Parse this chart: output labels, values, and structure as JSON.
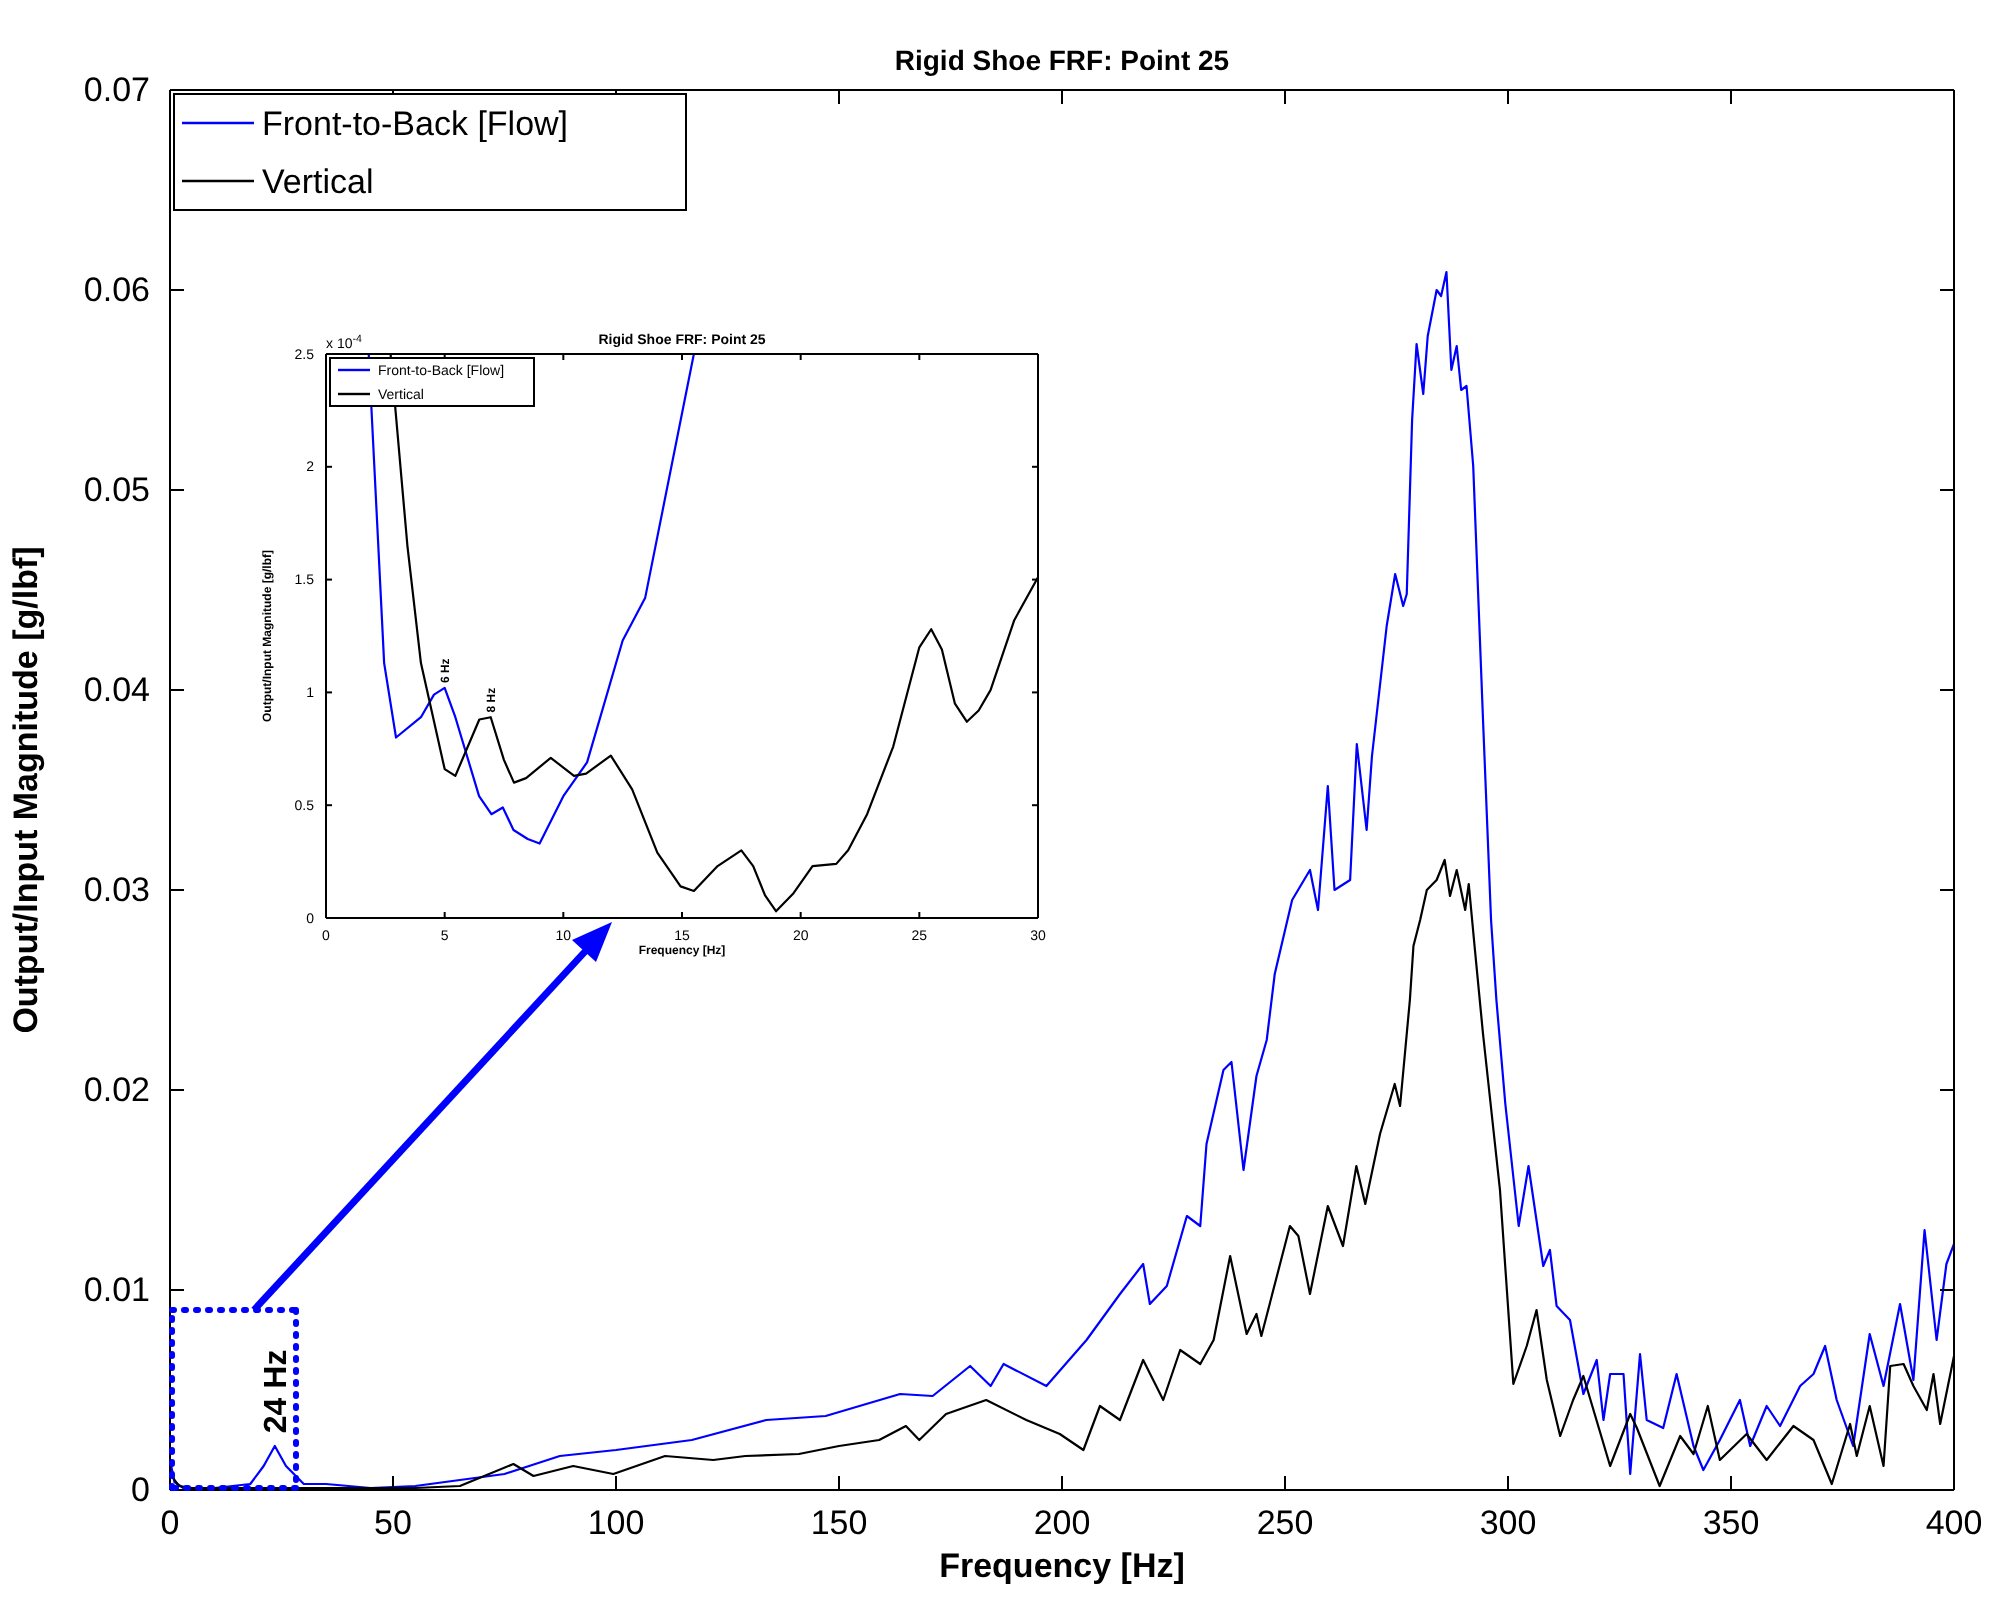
{
  "chart_data": [
    {
      "type": "line",
      "title": "Rigid Shoe FRF:  Point 25",
      "xlabel": "Frequency [Hz]",
      "ylabel": "Output/Input Magnitude [g/lbf]",
      "xlim": [
        0,
        400
      ],
      "ylim": [
        0,
        0.07
      ],
      "xticks": [
        0,
        50,
        100,
        150,
        200,
        250,
        300,
        350,
        400
      ],
      "yticks": [
        0,
        0.01,
        0.02,
        0.03,
        0.04,
        0.05,
        0.06,
        0.07
      ],
      "legend": "top left",
      "annotations": [
        {
          "text": "24 Hz",
          "x": 23.5,
          "y": 0.0022
        }
      ],
      "series": [
        {
          "name": "Front-to-Back [Flow]",
          "color": "#0000ff",
          "x": [
            0,
            1,
            3,
            10,
            18,
            21,
            23.5,
            26,
            30,
            35,
            45,
            55,
            65,
            75,
            87.4,
            100,
            117,
            133.7,
            147,
            163.7,
            171,
            179.4,
            184,
            186.9,
            196.5,
            205.5,
            213,
            218.2,
            219.7,
            223.5,
            228,
            231,
            232.4,
            236.2,
            238,
            240.7,
            243.6,
            245.9,
            247.7,
            251.6,
            255.6,
            257.4,
            259.6,
            261.1,
            264.6,
            266.1,
            268.3,
            269.5,
            272.8,
            274.7,
            276.5,
            277.3,
            278.5,
            279.5,
            281,
            282,
            284,
            285,
            286.2,
            287.3,
            288.5,
            289.5,
            290.7,
            292.2,
            294.4,
            296.2,
            297.4,
            299.4,
            302.4,
            304.6,
            307.9,
            309.4,
            310.9,
            313.9,
            316.9,
            319.9,
            321.4,
            322.9,
            325.9,
            327.4,
            329.6,
            331.1,
            334.8,
            337.8,
            341.6,
            343.8,
            347.5,
            352,
            354.3,
            358,
            361,
            365.5,
            368.5,
            371.1,
            373.7,
            377.4,
            381.1,
            384.2,
            387.9,
            390.9,
            393.4,
            396.1,
            398.3,
            400
          ],
          "values": [
            0.0015,
            0.0004,
            0.0001,
            0.0001,
            0.0003,
            0.0012,
            0.0022,
            0.0012,
            0.0003,
            0.0003,
            0.0001,
            0.0002,
            0.0005,
            0.0008,
            0.0017,
            0.002,
            0.0025,
            0.0035,
            0.0037,
            0.0048,
            0.0047,
            0.0062,
            0.0052,
            0.0063,
            0.0052,
            0.0075,
            0.0098,
            0.0113,
            0.0093,
            0.0102,
            0.0137,
            0.0132,
            0.0173,
            0.021,
            0.0214,
            0.016,
            0.0207,
            0.0225,
            0.0258,
            0.0295,
            0.031,
            0.029,
            0.0352,
            0.03,
            0.0305,
            0.0373,
            0.033,
            0.0367,
            0.0432,
            0.0458,
            0.0442,
            0.0448,
            0.0535,
            0.0573,
            0.0548,
            0.0577,
            0.06,
            0.0597,
            0.0609,
            0.056,
            0.0572,
            0.055,
            0.0552,
            0.0512,
            0.0385,
            0.0285,
            0.0245,
            0.0193,
            0.0132,
            0.0162,
            0.0112,
            0.012,
            0.0092,
            0.0085,
            0.0048,
            0.0065,
            0.0035,
            0.0058,
            0.0058,
            0.0008,
            0.0068,
            0.0035,
            0.0031,
            0.0058,
            0.0022,
            0.001,
            0.0025,
            0.0045,
            0.0022,
            0.0042,
            0.0032,
            0.0052,
            0.0058,
            0.0072,
            0.0045,
            0.0022,
            0.0078,
            0.0052,
            0.0093,
            0.0055,
            0.013,
            0.0075,
            0.0113,
            0.0123
          ]
        },
        {
          "name": "Vertical",
          "color": "#000000",
          "x": [
            0,
            2,
            5,
            20,
            40,
            55,
            65,
            77,
            81.5,
            90.4,
            99.4,
            111,
            121.8,
            129,
            141,
            150,
            159,
            165,
            168,
            174,
            183,
            192,
            199.5,
            204.8,
            208.5,
            213,
            218.2,
            222.7,
            226.5,
            231,
            234,
            237.7,
            241.4,
            243.6,
            244.7,
            251.1,
            253,
            255.6,
            259.6,
            263,
            266,
            268,
            271.3,
            274.6,
            275.8,
            278,
            278.8,
            280.3,
            281.8,
            284,
            285.8,
            287,
            288.5,
            290.4,
            291.2,
            292.5,
            294.4,
            298.2,
            301.2,
            304.2,
            306.4,
            308.7,
            311.7,
            314.6,
            316.9,
            322.9,
            327.4,
            328.9,
            334,
            338.6,
            341.6,
            344.8,
            347.5,
            353.5,
            358,
            364,
            368.5,
            372.6,
            376.7,
            378.2,
            381.1,
            384.2,
            385.7,
            388.7,
            390.9,
            393.9,
            395.4,
            396.9,
            400
          ],
          "values": [
            0.0008,
            0.0002,
            0.0001,
            0.0001,
            0.0001,
            0.0001,
            0.0002,
            0.0013,
            0.0007,
            0.0012,
            0.0008,
            0.0017,
            0.0015,
            0.0017,
            0.0018,
            0.0022,
            0.0025,
            0.0032,
            0.0025,
            0.0038,
            0.0045,
            0.0035,
            0.0028,
            0.002,
            0.0042,
            0.0035,
            0.0065,
            0.0045,
            0.007,
            0.0063,
            0.0075,
            0.0117,
            0.0078,
            0.0088,
            0.0077,
            0.0132,
            0.0127,
            0.0098,
            0.0142,
            0.0122,
            0.0162,
            0.0143,
            0.0178,
            0.0203,
            0.0192,
            0.0245,
            0.0272,
            0.0285,
            0.03,
            0.0305,
            0.0315,
            0.0297,
            0.031,
            0.029,
            0.0303,
            0.0272,
            0.0228,
            0.015,
            0.0053,
            0.0072,
            0.009,
            0.0055,
            0.0027,
            0.0045,
            0.0057,
            0.0012,
            0.0038,
            0.0031,
            0.0002,
            0.0027,
            0.0018,
            0.0042,
            0.0015,
            0.0028,
            0.0015,
            0.0032,
            0.0025,
            0.0003,
            0.0033,
            0.0017,
            0.0042,
            0.0012,
            0.0062,
            0.0063,
            0.0052,
            0.004,
            0.0058,
            0.0033,
            0.0067
          ]
        }
      ]
    },
    {
      "type": "line",
      "title": "Rigid Shoe FRF:  Point 25",
      "xlabel": "Frequency [Hz]",
      "ylabel": "Output/Input Magnitude [g/lbf]",
      "xlim": [
        0,
        30
      ],
      "ylim": [
        0,
        2.5
      ],
      "xticks": [
        0,
        5,
        10,
        15,
        20,
        25,
        30
      ],
      "yticks": [
        0,
        0.5,
        1,
        1.5,
        2,
        2.5
      ],
      "legend": "top left",
      "annotations": [
        "x 10$^{-4}$",
        {
          "text": "6 Hz",
          "x": 5,
          "y": 1.02
        },
        {
          "text": "8 Hz",
          "x": 6.94,
          "y": 0.89
        }
      ],
      "series": [
        {
          "name": "Front-to-Back [Flow]",
          "color": "#0000ff",
          "x": [
            1.8,
            2.45,
            2.95,
            4,
            4.55,
            5,
            5.45,
            6.45,
            6.97,
            7.45,
            7.9,
            8.5,
            9,
            10,
            11,
            12.5,
            13.45,
            15.5
          ],
          "values": [
            2.5,
            1.13,
            0.8,
            0.89,
            0.99,
            1.02,
            0.89,
            0.54,
            0.46,
            0.49,
            0.39,
            0.35,
            0.33,
            0.54,
            0.69,
            1.23,
            1.42,
            2.5
          ]
        },
        {
          "name": "Vertical",
          "color": "#000000",
          "x": [
            2.72,
            3.43,
            4,
            5,
            5.45,
            6.46,
            6.94,
            7.5,
            7.92,
            8.43,
            9.47,
            10.45,
            10.96,
            12,
            12.9,
            13.96,
            14.94,
            15.5,
            16.5,
            17.5,
            18,
            18.5,
            18.96,
            19.7,
            20.5,
            21.5,
            22,
            22.8,
            23.9,
            25,
            25.5,
            25.95,
            26.5,
            27,
            27.5,
            28,
            29,
            30
          ],
          "values": [
            2.5,
            1.65,
            1.13,
            0.66,
            0.63,
            0.88,
            0.89,
            0.7,
            0.6,
            0.62,
            0.71,
            0.63,
            0.64,
            0.72,
            0.57,
            0.29,
            0.14,
            0.12,
            0.23,
            0.3,
            0.23,
            0.1,
            0.03,
            0.11,
            0.23,
            0.24,
            0.3,
            0.46,
            0.76,
            1.2,
            1.28,
            1.19,
            0.95,
            0.87,
            0.92,
            1.01,
            1.32,
            1.51
          ]
        }
      ]
    }
  ]
}
